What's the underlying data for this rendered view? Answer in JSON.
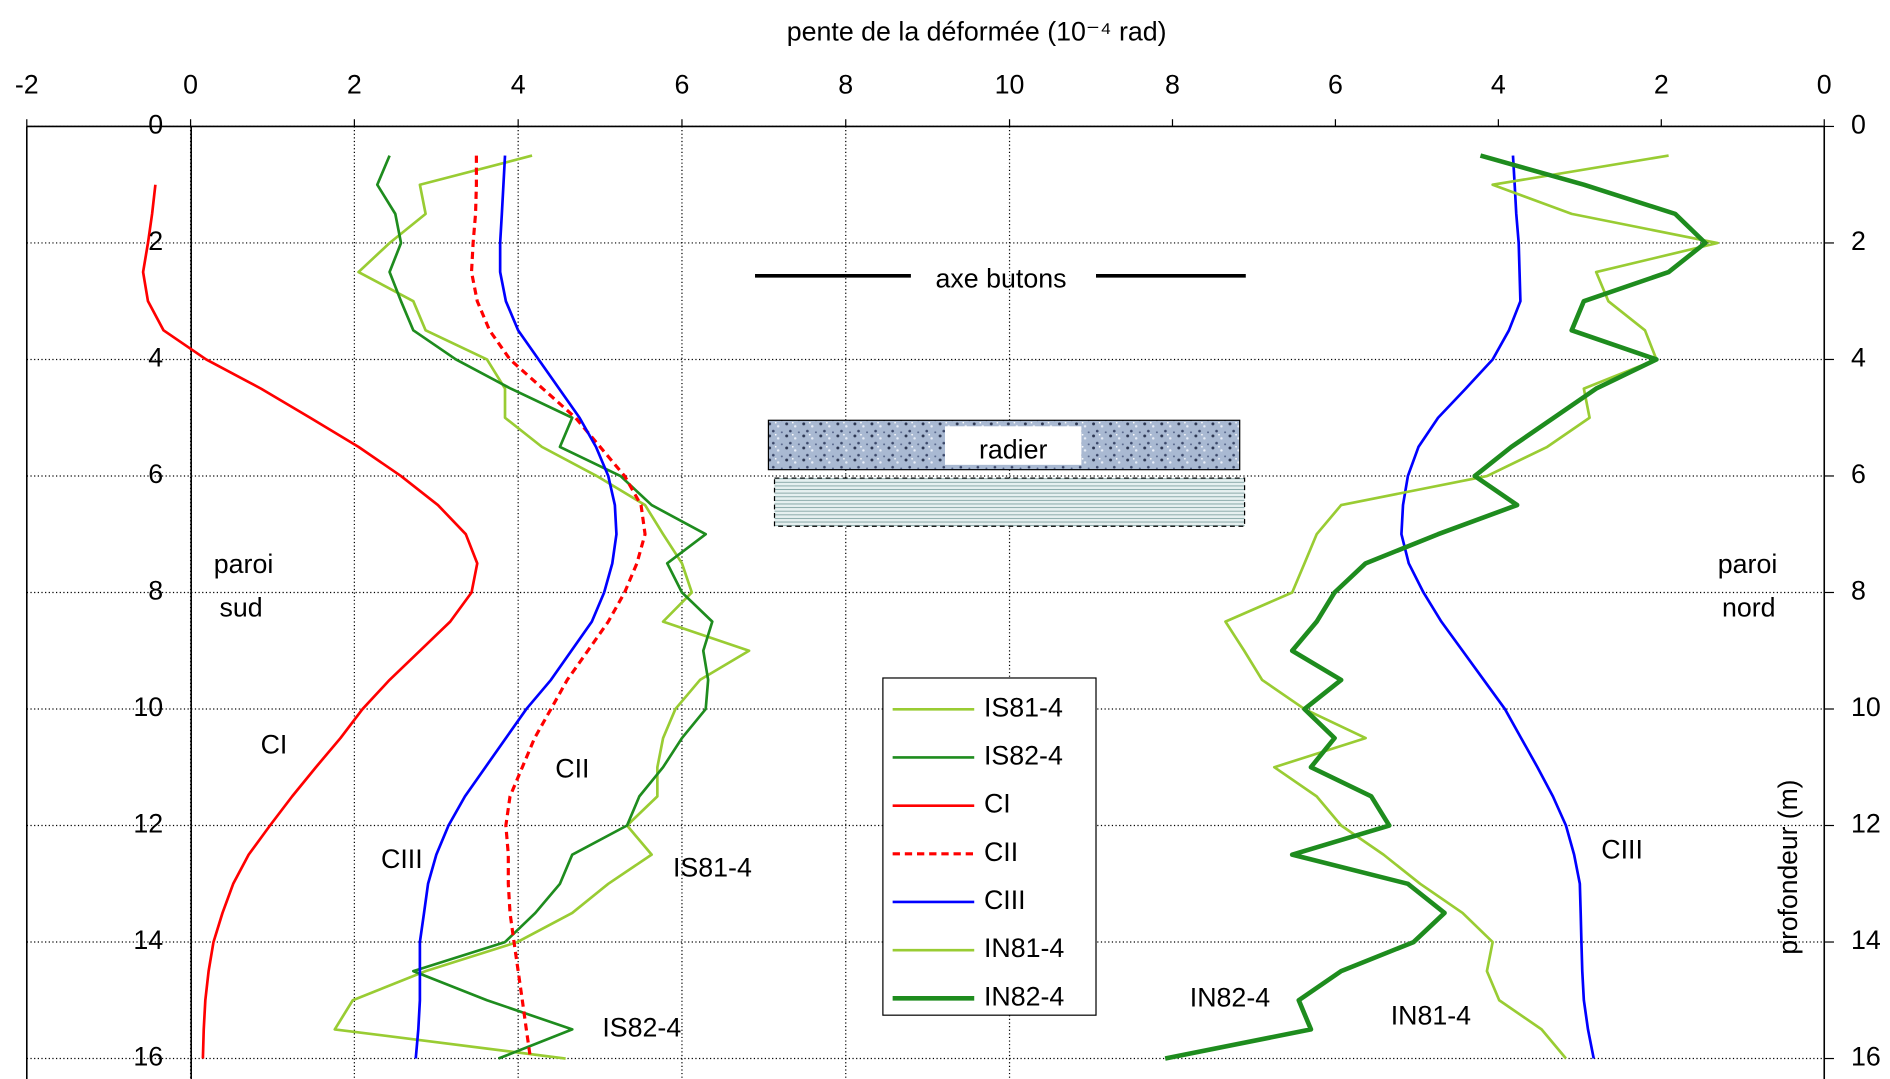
{
  "chart_data": [
    {
      "type": "line",
      "title": "pente de la déformée (10⁻⁴ rad)",
      "xlim": [
        -2,
        10
      ],
      "xticks": [
        -2,
        0,
        2,
        4,
        6,
        8,
        10
      ],
      "ylim": [
        0,
        16
      ],
      "yticks": [
        0,
        2,
        4,
        6,
        8,
        10,
        12,
        14,
        16
      ],
      "grid": true,
      "y": [
        0,
        0.5,
        1,
        1.5,
        2,
        2.5,
        3,
        3.5,
        4,
        4.5,
        5,
        5.5,
        6,
        6.5,
        7,
        7.5,
        8,
        8.5,
        9,
        9.5,
        10,
        10.5,
        11,
        11.5,
        12,
        12.5,
        13,
        13.5,
        14,
        14.5,
        15,
        15.5,
        16
      ],
      "series": [
        {
          "name": "IS81-4",
          "color": "#99cc33",
          "line_style": "solid",
          "values": [
            null,
            4.17,
            2.8,
            2.87,
            2.43,
            2.05,
            2.72,
            2.87,
            3.62,
            3.84,
            3.84,
            4.29,
            4.96,
            5.55,
            5.77,
            6.0,
            6.12,
            5.77,
            6.82,
            6.22,
            5.92,
            5.77,
            5.7,
            5.7,
            5.33,
            5.63,
            5.1,
            4.66,
            3.99,
            2.87,
            1.98,
            1.76,
            4.58
          ]
        },
        {
          "name": "IS82-4",
          "color": "#1e8c1e",
          "line_style": "solid",
          "values": [
            null,
            2.43,
            2.28,
            2.5,
            2.57,
            2.43,
            2.57,
            2.72,
            3.24,
            3.91,
            4.66,
            4.51,
            5.25,
            5.63,
            6.29,
            5.82,
            6.0,
            6.37,
            6.26,
            6.32,
            6.29,
            6.0,
            5.77,
            5.48,
            5.33,
            4.66,
            4.51,
            4.21,
            3.84,
            2.72,
            3.62,
            4.66,
            3.76
          ]
        },
        {
          "name": "CI",
          "color": "#ff0000",
          "line_style": "solid",
          "values": [
            null,
            null,
            -0.43,
            -0.47,
            -0.52,
            -0.58,
            -0.52,
            -0.33,
            0.19,
            0.86,
            1.46,
            2.05,
            2.57,
            3.02,
            3.36,
            3.5,
            3.43,
            3.17,
            2.8,
            2.43,
            2.1,
            1.83,
            1.53,
            1.24,
            0.97,
            0.71,
            0.52,
            0.39,
            0.28,
            0.22,
            0.18,
            0.16,
            0.15
          ]
        },
        {
          "name": "CII",
          "color": "#ff0000",
          "line_style": "dashed",
          "values": [
            null,
            3.49,
            3.49,
            3.48,
            3.45,
            3.43,
            3.5,
            3.65,
            3.9,
            4.3,
            4.7,
            5.0,
            5.3,
            5.5,
            5.55,
            5.45,
            5.3,
            5.1,
            4.85,
            4.6,
            4.4,
            4.2,
            4.05,
            3.9,
            3.85,
            3.88,
            3.88,
            3.9,
            3.95,
            4.0,
            4.05,
            4.1,
            4.15
          ]
        },
        {
          "name": "CIII",
          "color": "#0000ff",
          "line_style": "solid",
          "values": [
            null,
            3.84,
            3.82,
            3.8,
            3.78,
            3.78,
            3.85,
            4.0,
            4.25,
            4.5,
            4.75,
            4.95,
            5.1,
            5.18,
            5.2,
            5.15,
            5.05,
            4.9,
            4.65,
            4.4,
            4.1,
            3.85,
            3.6,
            3.35,
            3.15,
            3.0,
            2.9,
            2.85,
            2.8,
            2.8,
            2.8,
            2.78,
            2.75
          ]
        }
      ],
      "annotations": [
        "paroi",
        "sud",
        "CI",
        "CII",
        "CIII",
        "IS81-4",
        "IS82-4",
        "axe butons",
        "radier"
      ]
    },
    {
      "type": "line",
      "xlim": [
        10,
        0
      ],
      "xticks": [
        8,
        6,
        4,
        2,
        0
      ],
      "ylim": [
        0,
        16
      ],
      "yticks": [
        0,
        2,
        4,
        6,
        8,
        10,
        12,
        14,
        16
      ],
      "ylabel": "profondeur (m)",
      "y": [
        0,
        0.5,
        1,
        1.5,
        2,
        2.5,
        3,
        3.5,
        4,
        4.5,
        5,
        5.5,
        6,
        6.5,
        7,
        7.5,
        8,
        8.5,
        9,
        9.5,
        10,
        10.5,
        11,
        11.5,
        12,
        12.5,
        13,
        13.5,
        14,
        14.5,
        15,
        15.5,
        16
      ],
      "series": [
        {
          "name": "CIII",
          "color": "#0000ff",
          "line_style": "solid",
          "values": [
            null,
            3.82,
            3.8,
            3.78,
            3.75,
            3.74,
            3.73,
            3.87,
            4.07,
            4.4,
            4.74,
            4.98,
            5.11,
            5.17,
            5.19,
            5.1,
            4.92,
            4.7,
            4.44,
            4.18,
            3.92,
            3.72,
            3.52,
            3.33,
            3.17,
            3.07,
            3.0,
            2.99,
            2.98,
            2.97,
            2.95,
            2.9,
            2.83
          ]
        },
        {
          "name": "IN81-4",
          "color": "#99cc33",
          "line_style": "solid",
          "values": [
            null,
            1.91,
            4.07,
            3.1,
            1.31,
            2.8,
            2.65,
            2.2,
            2.06,
            2.95,
            2.88,
            3.4,
            4.14,
            5.93,
            6.23,
            6.38,
            6.53,
            7.35,
            7.12,
            6.9,
            6.38,
            5.63,
            6.75,
            6.23,
            5.93,
            5.41,
            4.96,
            4.44,
            4.07,
            4.14,
            3.99,
            3.47,
            3.17
          ]
        },
        {
          "name": "IN82-4",
          "color": "#1e8c1e",
          "line_style": "thick",
          "values": [
            null,
            4.22,
            2.95,
            1.83,
            1.46,
            1.91,
            2.95,
            3.1,
            2.06,
            2.8,
            3.32,
            3.84,
            4.29,
            3.77,
            4.74,
            5.63,
            6.01,
            6.23,
            6.53,
            5.93,
            6.38,
            6.01,
            6.3,
            5.56,
            5.34,
            6.53,
            5.11,
            4.66,
            5.04,
            5.93,
            6.45,
            6.3,
            8.09
          ]
        }
      ],
      "annotations": [
        "paroi",
        "nord",
        "CIII",
        "IN82-4",
        "IN81-4"
      ]
    }
  ]
}
